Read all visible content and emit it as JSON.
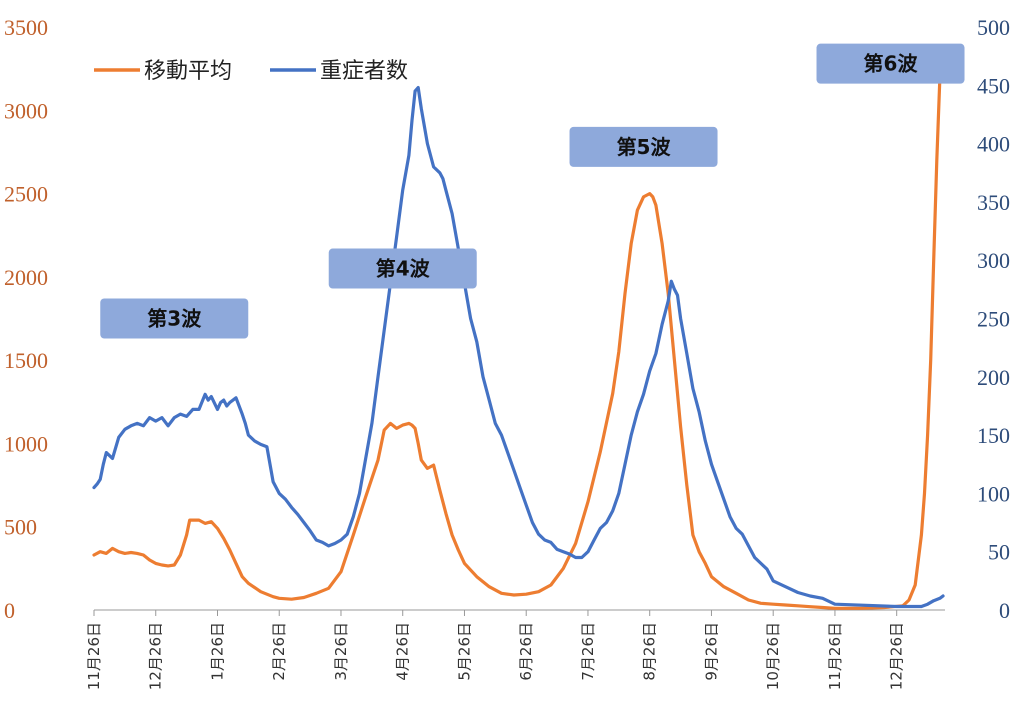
{
  "chart_data": {
    "type": "line",
    "title": "",
    "xlabel": "",
    "ylabel_left": "",
    "ylabel_right": "",
    "ylim_left": [
      0,
      3500
    ],
    "ylim_right": [
      0,
      500
    ],
    "yticks_left": [
      "0",
      "500",
      "1000",
      "1500",
      "2000",
      "2500",
      "3000",
      "3500"
    ],
    "yticks_right": [
      "0",
      "50",
      "100",
      "150",
      "200",
      "250",
      "300",
      "350",
      "400",
      "450",
      "500"
    ],
    "left_axis_color": "#C0602B",
    "right_axis_color": "#2E4C7A",
    "grid": false,
    "legend_position": "top-left",
    "x_tick_labels": [
      "11月26日",
      "12月26日",
      "1月26日",
      "2月26日",
      "3月26日",
      "4月26日",
      "5月26日",
      "6月26日",
      "7月26日",
      "8月26日",
      "9月26日",
      "10月26日",
      "11月26日",
      "12月26日"
    ],
    "x_tick_month_index": [
      0,
      1,
      2,
      3,
      4,
      5,
      6,
      7,
      8,
      9,
      10,
      11,
      12,
      13
    ],
    "x_range_months": [
      0,
      13.75
    ],
    "series": [
      {
        "name": "移動平均",
        "axis": "left",
        "color": "#ED7D31",
        "points": [
          [
            0,
            330
          ],
          [
            0.1,
            350
          ],
          [
            0.2,
            340
          ],
          [
            0.3,
            370
          ],
          [
            0.4,
            350
          ],
          [
            0.5,
            340
          ],
          [
            0.6,
            345
          ],
          [
            0.7,
            340
          ],
          [
            0.8,
            330
          ],
          [
            0.9,
            300
          ],
          [
            1.0,
            280
          ],
          [
            1.1,
            270
          ],
          [
            1.2,
            265
          ],
          [
            1.3,
            270
          ],
          [
            1.4,
            330
          ],
          [
            1.5,
            450
          ],
          [
            1.55,
            540
          ],
          [
            1.7,
            540
          ],
          [
            1.8,
            520
          ],
          [
            1.9,
            530
          ],
          [
            2.0,
            490
          ],
          [
            2.1,
            430
          ],
          [
            2.2,
            360
          ],
          [
            2.3,
            280
          ],
          [
            2.4,
            200
          ],
          [
            2.5,
            160
          ],
          [
            2.7,
            110
          ],
          [
            2.9,
            80
          ],
          [
            3.0,
            70
          ],
          [
            3.2,
            65
          ],
          [
            3.4,
            75
          ],
          [
            3.6,
            100
          ],
          [
            3.8,
            130
          ],
          [
            4.0,
            230
          ],
          [
            4.2,
            450
          ],
          [
            4.4,
            680
          ],
          [
            4.6,
            900
          ],
          [
            4.7,
            1080
          ],
          [
            4.8,
            1120
          ],
          [
            4.9,
            1090
          ],
          [
            5.0,
            1110
          ],
          [
            5.1,
            1120
          ],
          [
            5.15,
            1110
          ],
          [
            5.2,
            1090
          ],
          [
            5.25,
            1000
          ],
          [
            5.3,
            900
          ],
          [
            5.4,
            850
          ],
          [
            5.5,
            870
          ],
          [
            5.6,
            720
          ],
          [
            5.7,
            580
          ],
          [
            5.8,
            450
          ],
          [
            5.9,
            360
          ],
          [
            6.0,
            280
          ],
          [
            6.2,
            200
          ],
          [
            6.4,
            140
          ],
          [
            6.6,
            100
          ],
          [
            6.8,
            90
          ],
          [
            7.0,
            95
          ],
          [
            7.2,
            110
          ],
          [
            7.4,
            150
          ],
          [
            7.6,
            250
          ],
          [
            7.8,
            400
          ],
          [
            8.0,
            650
          ],
          [
            8.2,
            950
          ],
          [
            8.4,
            1300
          ],
          [
            8.5,
            1550
          ],
          [
            8.6,
            1900
          ],
          [
            8.7,
            2200
          ],
          [
            8.8,
            2400
          ],
          [
            8.9,
            2480
          ],
          [
            9.0,
            2500
          ],
          [
            9.05,
            2480
          ],
          [
            9.1,
            2430
          ],
          [
            9.2,
            2200
          ],
          [
            9.3,
            1900
          ],
          [
            9.4,
            1500
          ],
          [
            9.5,
            1100
          ],
          [
            9.6,
            750
          ],
          [
            9.7,
            450
          ],
          [
            9.8,
            350
          ],
          [
            9.9,
            280
          ],
          [
            10.0,
            200
          ],
          [
            10.2,
            140
          ],
          [
            10.4,
            100
          ],
          [
            10.6,
            60
          ],
          [
            10.8,
            40
          ],
          [
            11.0,
            35
          ],
          [
            11.2,
            30
          ],
          [
            11.4,
            25
          ],
          [
            11.6,
            20
          ],
          [
            11.8,
            15
          ],
          [
            12.0,
            10
          ],
          [
            12.4,
            10
          ],
          [
            12.8,
            15
          ],
          [
            13.1,
            25
          ],
          [
            13.2,
            60
          ],
          [
            13.3,
            150
          ],
          [
            13.4,
            450
          ],
          [
            13.45,
            700
          ],
          [
            13.5,
            1050
          ],
          [
            13.55,
            1500
          ],
          [
            13.6,
            2100
          ],
          [
            13.65,
            2700
          ],
          [
            13.7,
            3200
          ]
        ]
      },
      {
        "name": "重症者数",
        "axis": "right",
        "color": "#4472C4",
        "points": [
          [
            0,
            105
          ],
          [
            0.05,
            108
          ],
          [
            0.1,
            112
          ],
          [
            0.15,
            125
          ],
          [
            0.2,
            135
          ],
          [
            0.3,
            130
          ],
          [
            0.4,
            148
          ],
          [
            0.5,
            155
          ],
          [
            0.6,
            158
          ],
          [
            0.7,
            160
          ],
          [
            0.8,
            158
          ],
          [
            0.9,
            165
          ],
          [
            1.0,
            162
          ],
          [
            1.1,
            165
          ],
          [
            1.2,
            158
          ],
          [
            1.3,
            165
          ],
          [
            1.4,
            168
          ],
          [
            1.5,
            166
          ],
          [
            1.6,
            172
          ],
          [
            1.7,
            172
          ],
          [
            1.8,
            185
          ],
          [
            1.85,
            180
          ],
          [
            1.9,
            183
          ],
          [
            2.0,
            172
          ],
          [
            2.05,
            178
          ],
          [
            2.1,
            180
          ],
          [
            2.15,
            175
          ],
          [
            2.2,
            178
          ],
          [
            2.3,
            182
          ],
          [
            2.4,
            168
          ],
          [
            2.45,
            160
          ],
          [
            2.5,
            150
          ],
          [
            2.6,
            145
          ],
          [
            2.7,
            142
          ],
          [
            2.8,
            140
          ],
          [
            2.9,
            110
          ],
          [
            3.0,
            100
          ],
          [
            3.1,
            95
          ],
          [
            3.2,
            88
          ],
          [
            3.3,
            82
          ],
          [
            3.4,
            75
          ],
          [
            3.5,
            68
          ],
          [
            3.6,
            60
          ],
          [
            3.7,
            58
          ],
          [
            3.8,
            55
          ],
          [
            3.9,
            57
          ],
          [
            4.0,
            60
          ],
          [
            4.1,
            65
          ],
          [
            4.2,
            80
          ],
          [
            4.3,
            100
          ],
          [
            4.4,
            130
          ],
          [
            4.5,
            160
          ],
          [
            4.6,
            200
          ],
          [
            4.7,
            240
          ],
          [
            4.8,
            280
          ],
          [
            4.9,
            320
          ],
          [
            5.0,
            360
          ],
          [
            5.1,
            390
          ],
          [
            5.15,
            420
          ],
          [
            5.2,
            445
          ],
          [
            5.25,
            448
          ],
          [
            5.3,
            430
          ],
          [
            5.4,
            400
          ],
          [
            5.5,
            380
          ],
          [
            5.6,
            375
          ],
          [
            5.65,
            370
          ],
          [
            5.7,
            360
          ],
          [
            5.8,
            340
          ],
          [
            5.9,
            310
          ],
          [
            6.0,
            280
          ],
          [
            6.1,
            250
          ],
          [
            6.2,
            230
          ],
          [
            6.3,
            200
          ],
          [
            6.4,
            180
          ],
          [
            6.5,
            160
          ],
          [
            6.6,
            150
          ],
          [
            6.7,
            135
          ],
          [
            6.8,
            120
          ],
          [
            6.9,
            105
          ],
          [
            7.0,
            90
          ],
          [
            7.1,
            75
          ],
          [
            7.2,
            65
          ],
          [
            7.3,
            60
          ],
          [
            7.4,
            58
          ],
          [
            7.5,
            52
          ],
          [
            7.6,
            50
          ],
          [
            7.7,
            48
          ],
          [
            7.8,
            45
          ],
          [
            7.9,
            45
          ],
          [
            8.0,
            50
          ],
          [
            8.1,
            60
          ],
          [
            8.2,
            70
          ],
          [
            8.3,
            75
          ],
          [
            8.4,
            85
          ],
          [
            8.5,
            100
          ],
          [
            8.6,
            125
          ],
          [
            8.7,
            150
          ],
          [
            8.8,
            170
          ],
          [
            8.9,
            185
          ],
          [
            9.0,
            205
          ],
          [
            9.1,
            220
          ],
          [
            9.2,
            245
          ],
          [
            9.3,
            265
          ],
          [
            9.35,
            282
          ],
          [
            9.4,
            275
          ],
          [
            9.45,
            270
          ],
          [
            9.5,
            250
          ],
          [
            9.6,
            220
          ],
          [
            9.7,
            190
          ],
          [
            9.8,
            170
          ],
          [
            9.9,
            145
          ],
          [
            10.0,
            125
          ],
          [
            10.1,
            110
          ],
          [
            10.2,
            95
          ],
          [
            10.3,
            80
          ],
          [
            10.4,
            70
          ],
          [
            10.5,
            65
          ],
          [
            10.6,
            55
          ],
          [
            10.7,
            45
          ],
          [
            10.8,
            40
          ],
          [
            10.9,
            35
          ],
          [
            11.0,
            25
          ],
          [
            11.2,
            20
          ],
          [
            11.4,
            15
          ],
          [
            11.6,
            12
          ],
          [
            11.8,
            10
          ],
          [
            12.0,
            5
          ],
          [
            12.5,
            4
          ],
          [
            13.0,
            3
          ],
          [
            13.4,
            3
          ],
          [
            13.5,
            5
          ],
          [
            13.6,
            8
          ],
          [
            13.7,
            10
          ],
          [
            13.75,
            12
          ]
        ]
      }
    ],
    "annotations": [
      {
        "label": "第3波",
        "x_month": 1.3,
        "y_left": 1750
      },
      {
        "label": "第4波",
        "x_month": 5.0,
        "y_left": 2050
      },
      {
        "label": "第5波",
        "x_month": 8.9,
        "y_left": 2780
      },
      {
        "label": "第6波",
        "x_month": 12.9,
        "y_left": 3280
      }
    ],
    "annotation_box_color": "#8EA9DB",
    "tick_label_color": "#333333"
  }
}
